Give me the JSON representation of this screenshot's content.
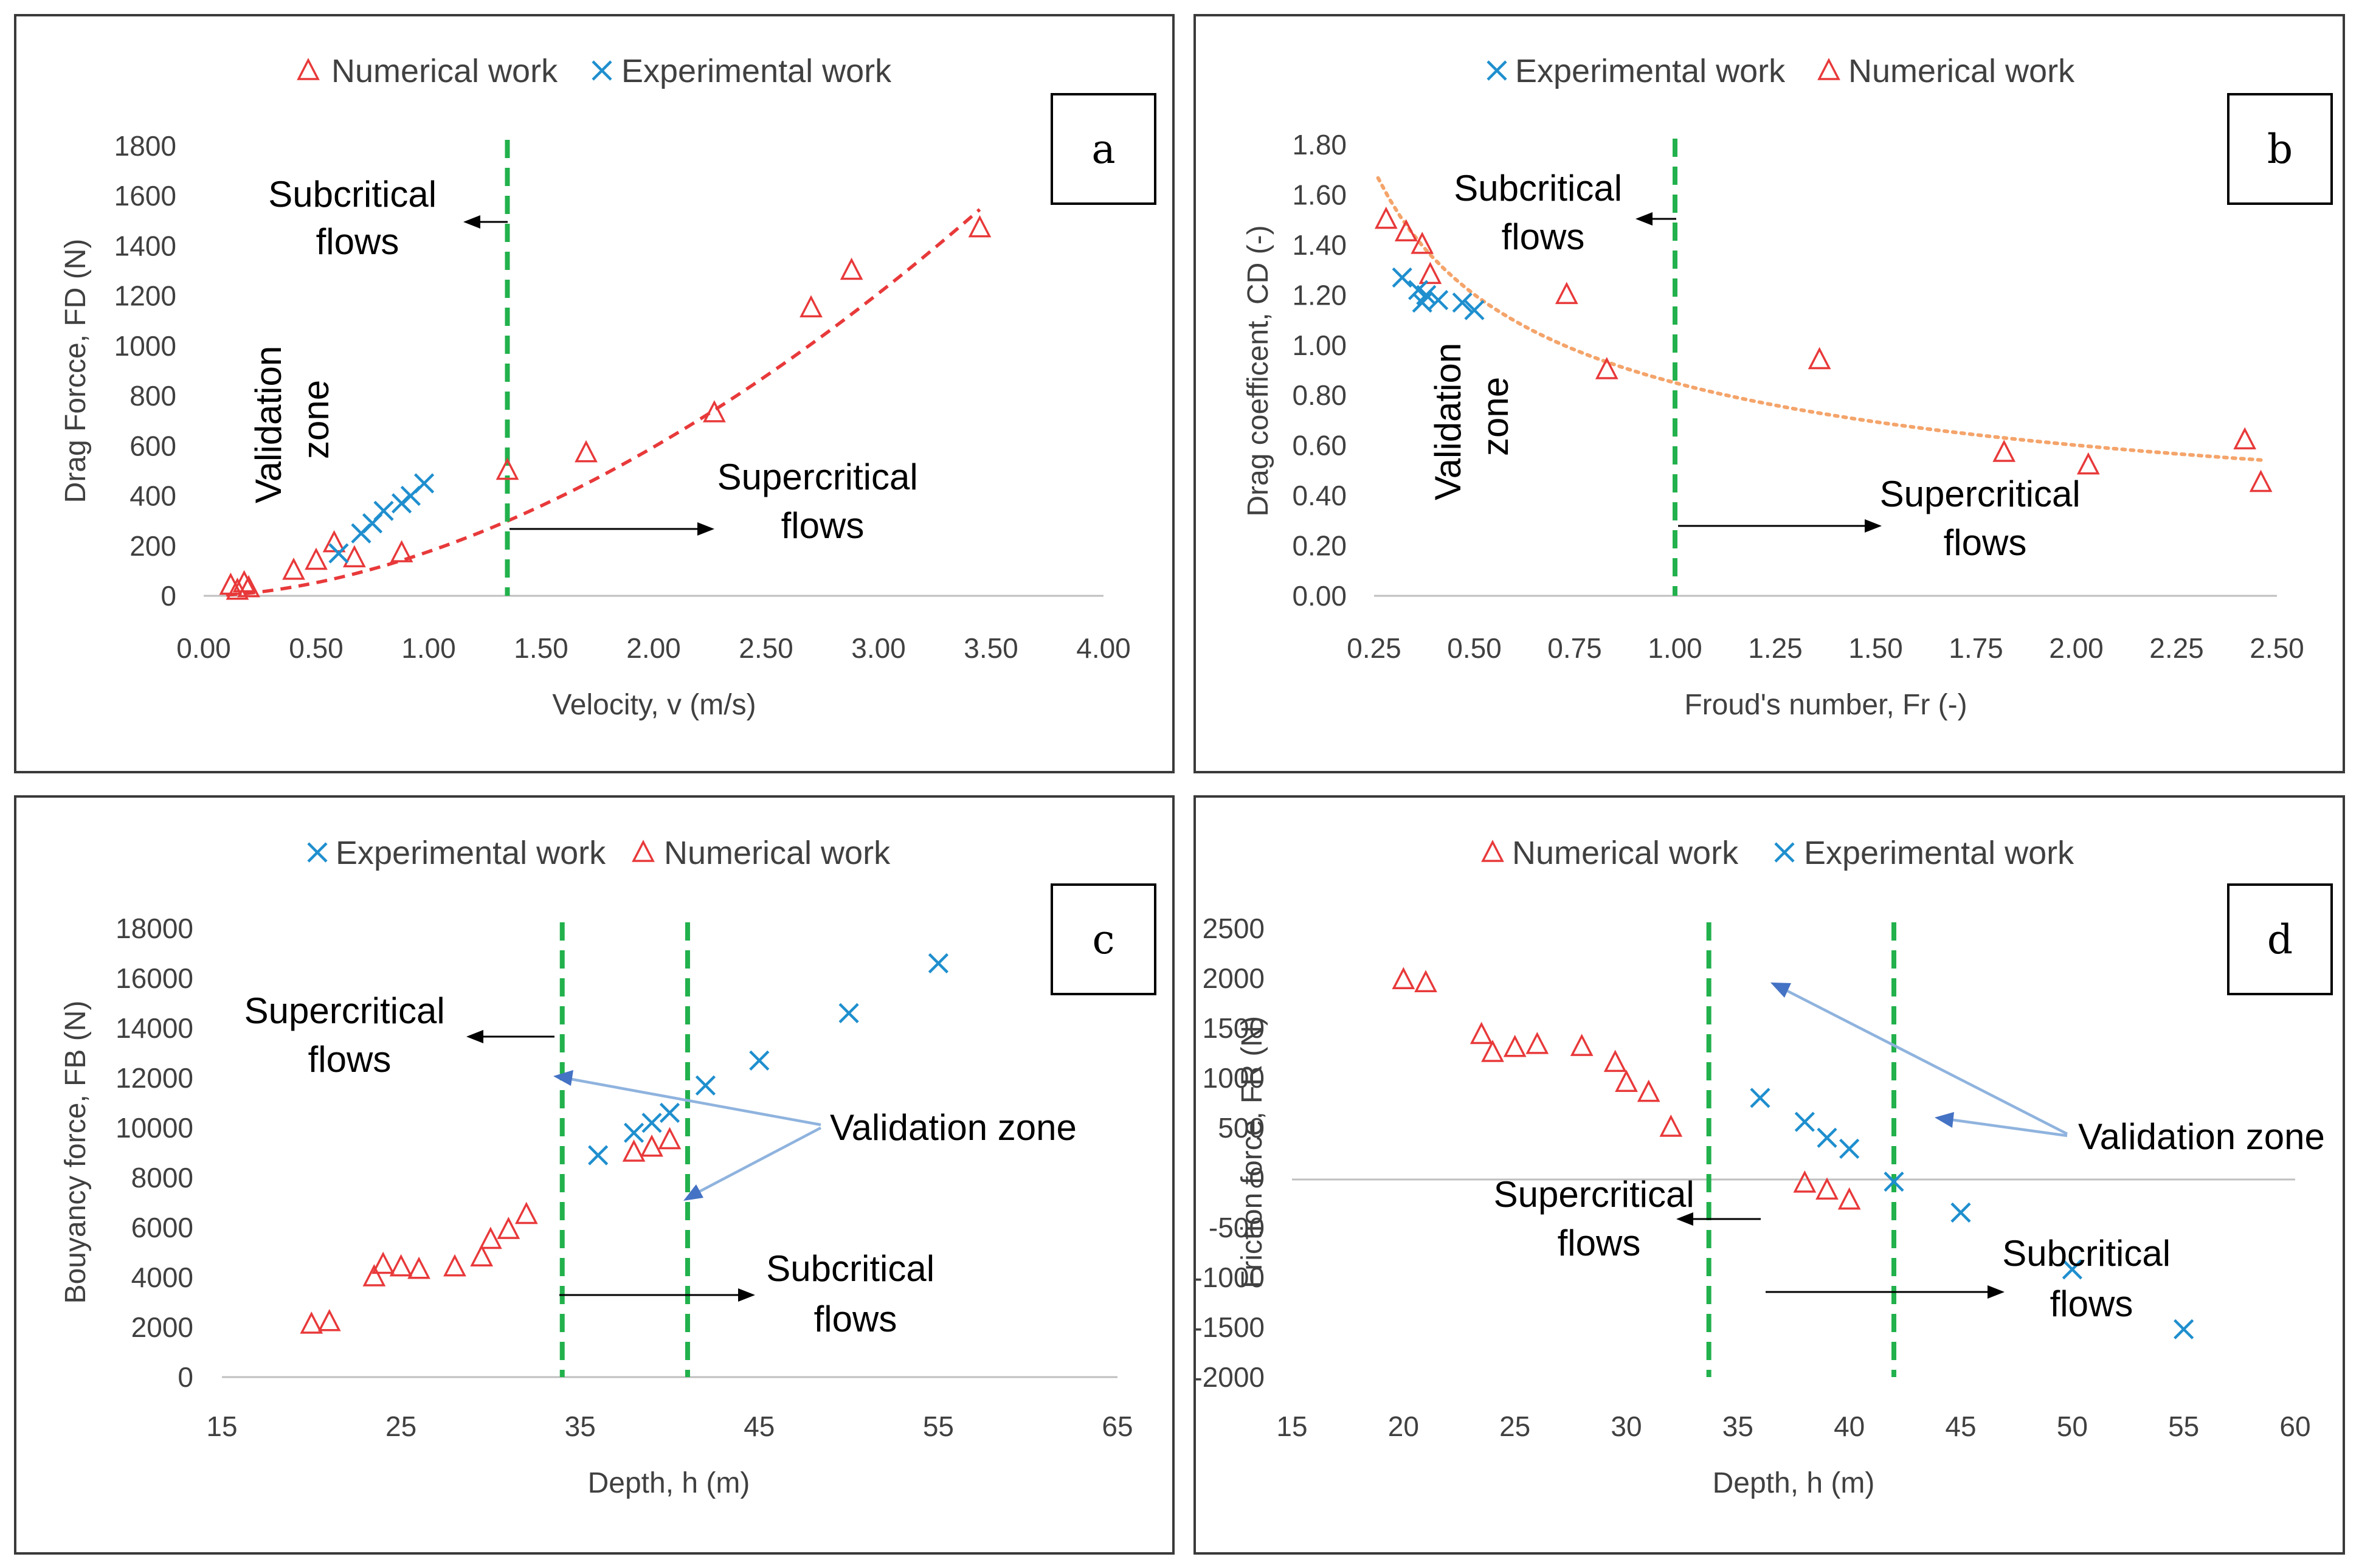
{
  "chart_data": [
    {
      "id": "a",
      "type": "scatter",
      "panel_letter": "a",
      "xlabel": "Velocity, v (m/s)",
      "ylabel": "Drag Forcce, FD (N)",
      "xlim": [
        0,
        4
      ],
      "ylim": [
        0,
        1800
      ],
      "xticks": [
        0,
        0.5,
        1,
        1.5,
        2,
        2.5,
        3,
        3.5,
        4
      ],
      "xtick_labels": [
        "0.00",
        "0.50",
        "1.00",
        "1.50",
        "2.00",
        "2.50",
        "3.00",
        "3.50",
        "4.00"
      ],
      "yticks": [
        0,
        200,
        400,
        600,
        800,
        1000,
        1200,
        1400,
        1600,
        1800
      ],
      "ytick_labels": [
        "0",
        "200",
        "400",
        "600",
        "800",
        "1000",
        "1200",
        "1400",
        "1600",
        "1800"
      ],
      "legend": [
        "Numerical work",
        "Experimental work"
      ],
      "series": [
        {
          "name": "Numerical work",
          "marker": "triangle",
          "x": [
            0.12,
            0.15,
            0.18,
            0.2,
            0.4,
            0.5,
            0.58,
            0.67,
            0.88,
            1.35,
            1.7,
            2.27,
            2.7,
            2.88,
            3.45
          ],
          "y": [
            40,
            20,
            50,
            30,
            100,
            140,
            210,
            150,
            170,
            500,
            570,
            730,
            1150,
            1300,
            1470
          ]
        },
        {
          "name": "Experimental work",
          "marker": "cross",
          "x": [
            0.6,
            0.7,
            0.75,
            0.8,
            0.88,
            0.92,
            0.98
          ],
          "y": [
            170,
            250,
            290,
            340,
            370,
            400,
            450
          ]
        }
      ],
      "trendline": {
        "kind": "power",
        "style": "red-dashed",
        "x0": 0.1,
        "x1": 3.45,
        "coef": 177,
        "exp": 1.75
      },
      "zone_x": [
        1.35
      ],
      "labels": {
        "left": [
          "Subcritical",
          "flows"
        ],
        "right": [
          "Supercritical",
          "flows"
        ],
        "zone": [
          "Validation",
          "zone"
        ]
      }
    },
    {
      "id": "b",
      "type": "scatter",
      "panel_letter": "b",
      "xlabel": "Froud's number, Fr (-)",
      "ylabel": "Drag coefficent, CD (-)",
      "xlim": [
        0.25,
        2.5
      ],
      "ylim": [
        0,
        1.8
      ],
      "xticks": [
        0.25,
        0.5,
        0.75,
        1,
        1.25,
        1.5,
        1.75,
        2,
        2.25,
        2.5
      ],
      "xtick_labels": [
        "0.25",
        "0.50",
        "0.75",
        "1.00",
        "1.25",
        "1.50",
        "1.75",
        "2.00",
        "2.25",
        "2.50"
      ],
      "yticks": [
        0,
        0.2,
        0.4,
        0.6,
        0.8,
        1,
        1.2,
        1.4,
        1.6,
        1.8
      ],
      "ytick_labels": [
        "0.00",
        "0.20",
        "0.40",
        "0.60",
        "0.80",
        "1.00",
        "1.20",
        "1.40",
        "1.60",
        "1.80"
      ],
      "legend": [
        "Experimental work",
        "Numerical work"
      ],
      "series": [
        {
          "name": "Numerical work",
          "marker": "triangle",
          "x": [
            0.28,
            0.33,
            0.37,
            0.39,
            0.73,
            0.83,
            1.36,
            1.82,
            2.03,
            2.42,
            2.46
          ],
          "y": [
            1.5,
            1.45,
            1.4,
            1.28,
            1.2,
            0.9,
            0.94,
            0.57,
            0.52,
            0.62,
            0.45
          ]
        },
        {
          "name": "Experimental work",
          "marker": "cross",
          "x": [
            0.32,
            0.36,
            0.37,
            0.38,
            0.41,
            0.47,
            0.5
          ],
          "y": [
            1.27,
            1.22,
            1.17,
            1.2,
            1.18,
            1.17,
            1.14
          ]
        }
      ],
      "trendline": {
        "kind": "power",
        "style": "orange-dotted",
        "x0": 0.26,
        "x1": 2.46,
        "coef": 0.85,
        "exp": -0.5
      },
      "zone_x": [
        1.0
      ],
      "labels": {
        "left": [
          "Subcritical",
          "flows"
        ],
        "right": [
          "Supercritical",
          "flows"
        ],
        "zone": [
          "Validation",
          "zone"
        ]
      }
    },
    {
      "id": "c",
      "type": "scatter",
      "panel_letter": "c",
      "xlabel": "Depth, h (m)",
      "ylabel": "Bouyancy force, FB (N)",
      "xlim": [
        15,
        65
      ],
      "ylim": [
        0,
        18000
      ],
      "xticks": [
        15,
        25,
        35,
        45,
        55,
        65
      ],
      "xtick_labels": [
        "15",
        "25",
        "35",
        "45",
        "55",
        "65"
      ],
      "yticks": [
        0,
        2000,
        4000,
        6000,
        8000,
        10000,
        12000,
        14000,
        16000,
        18000
      ],
      "ytick_labels": [
        "0",
        "2000",
        "4000",
        "6000",
        "8000",
        "10000",
        "12000",
        "14000",
        "16000",
        "18000"
      ],
      "legend": [
        "Experimental work",
        "Numerical work"
      ],
      "series": [
        {
          "name": "Numerical work",
          "marker": "triangle",
          "x": [
            20,
            21,
            23.5,
            24,
            25,
            26,
            28,
            29.5,
            30,
            31,
            32,
            38,
            39,
            40
          ],
          "y": [
            2100,
            2200,
            4000,
            4500,
            4400,
            4300,
            4400,
            4800,
            5500,
            5900,
            6500,
            9000,
            9200,
            9500
          ]
        },
        {
          "name": "Experimental work",
          "marker": "cross",
          "x": [
            36,
            38,
            39,
            40,
            42,
            45,
            50,
            55
          ],
          "y": [
            8900,
            9800,
            10200,
            10600,
            11700,
            12700,
            14600,
            16600
          ]
        }
      ],
      "zone_x": [
        34,
        41
      ],
      "labels": {
        "left": [
          "Supercritical",
          "flows"
        ],
        "right": [
          "Subcritical",
          "flows"
        ],
        "zone": [
          "Validation zone"
        ]
      }
    },
    {
      "id": "d",
      "type": "scatter",
      "panel_letter": "d",
      "xlabel": "Depth, h (m)",
      "ylabel": "Friction force, FR (N)",
      "xlim": [
        15,
        60
      ],
      "ylim": [
        -2000,
        2500
      ],
      "xticks": [
        15,
        20,
        25,
        30,
        35,
        40,
        45,
        50,
        55,
        60
      ],
      "xtick_labels": [
        "15",
        "20",
        "25",
        "30",
        "35",
        "40",
        "45",
        "50",
        "55",
        "60"
      ],
      "yticks": [
        -2000,
        -1500,
        -1000,
        -500,
        0,
        500,
        1000,
        1500,
        2000,
        2500
      ],
      "ytick_labels": [
        "-2000",
        "-1500",
        "-1000",
        "-500",
        "0",
        "500",
        "1000",
        "1500",
        "2000",
        "2500"
      ],
      "legend": [
        "Numerical work",
        "Experimental work"
      ],
      "series": [
        {
          "name": "Numerical work",
          "marker": "triangle",
          "x": [
            20,
            21,
            23.5,
            24,
            25,
            26,
            28,
            29.5,
            30,
            31,
            32,
            38,
            39,
            40
          ],
          "y": [
            1980,
            1950,
            1430,
            1250,
            1300,
            1330,
            1310,
            1150,
            950,
            850,
            500,
            -60,
            -130,
            -230
          ]
        },
        {
          "name": "Experimental work",
          "marker": "cross",
          "x": [
            36,
            38,
            39,
            40,
            42,
            45,
            50,
            55
          ],
          "y": [
            800,
            560,
            400,
            290,
            -40,
            -350,
            -920,
            -1520
          ]
        }
      ],
      "zone_x": [
        33.7,
        42
      ],
      "labels": {
        "left": [
          "Supercritical",
          "flows"
        ],
        "right": [
          "Subcritical",
          "flows"
        ],
        "zone": [
          "Validation zone"
        ]
      }
    }
  ]
}
